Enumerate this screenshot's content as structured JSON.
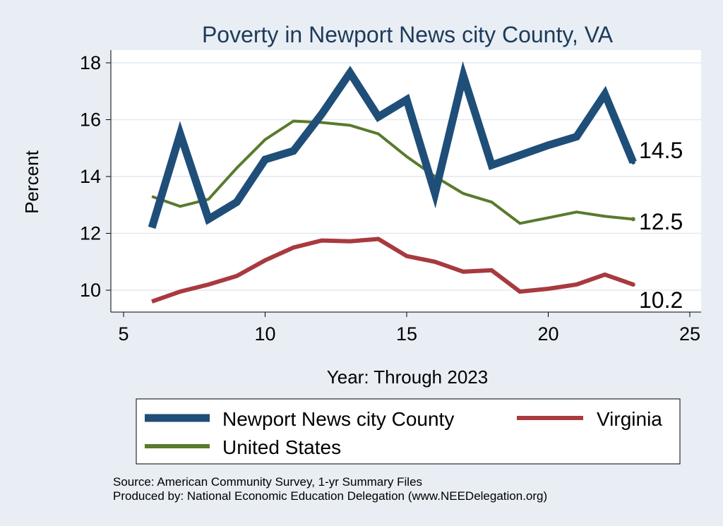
{
  "chart_data": {
    "type": "line",
    "title": "Poverty in Newport News city County, VA",
    "xlabel": "Year: Through 2023",
    "ylabel": "Percent",
    "xlim": [
      5,
      25
    ],
    "ylim": [
      9.1,
      18.2
    ],
    "xticks": [
      5,
      10,
      15,
      20,
      25
    ],
    "yticks": [
      10,
      12,
      14,
      16,
      18
    ],
    "grid": true,
    "legend_position": "bottom",
    "series": [
      {
        "name": "Newport News city County",
        "color": "#1f4e79",
        "x": [
          6,
          7,
          8,
          9,
          10,
          11,
          12,
          13,
          14,
          15,
          16,
          17,
          18,
          19,
          20,
          21,
          22,
          23
        ],
        "values": [
          12.2,
          15.5,
          12.5,
          13.1,
          14.6,
          14.9,
          16.2,
          17.65,
          16.1,
          16.7,
          13.4,
          17.55,
          14.4,
          14.75,
          15.1,
          15.4,
          16.9,
          14.5
        ],
        "end_label": "14.5"
      },
      {
        "name": "Virginia",
        "color": "#a83a3f",
        "x": [
          6,
          7,
          8,
          9,
          10,
          11,
          12,
          13,
          14,
          15,
          16,
          17,
          18,
          19,
          20,
          21,
          22,
          23
        ],
        "values": [
          9.6,
          9.95,
          10.2,
          10.5,
          11.05,
          11.5,
          11.75,
          11.72,
          11.8,
          11.2,
          11.0,
          10.65,
          10.7,
          9.95,
          10.05,
          10.2,
          10.55,
          10.2
        ],
        "end_label": "10.2"
      },
      {
        "name": "United States",
        "color": "#5a7a2c",
        "x": [
          6,
          7,
          8,
          9,
          10,
          11,
          12,
          13,
          14,
          15,
          16,
          17,
          18,
          19,
          20,
          21,
          22,
          23
        ],
        "values": [
          13.3,
          12.95,
          13.2,
          14.3,
          15.3,
          15.95,
          15.9,
          15.8,
          15.5,
          14.7,
          14.0,
          13.4,
          13.1,
          12.35,
          12.55,
          12.75,
          12.6,
          12.5
        ],
        "end_label": "12.5"
      }
    ]
  },
  "legend": {
    "items": [
      {
        "label": "Newport News city County",
        "color": "#1f4e79"
      },
      {
        "label": "Virginia",
        "color": "#a83a3f"
      },
      {
        "label": "United States",
        "color": "#5a7a2c"
      }
    ]
  },
  "source": {
    "line1": "Source: American Community Survey, 1-yr Summary Files",
    "line2": "Produced by: National Economic Education Delegation (www.NEEDelegation.org)"
  }
}
